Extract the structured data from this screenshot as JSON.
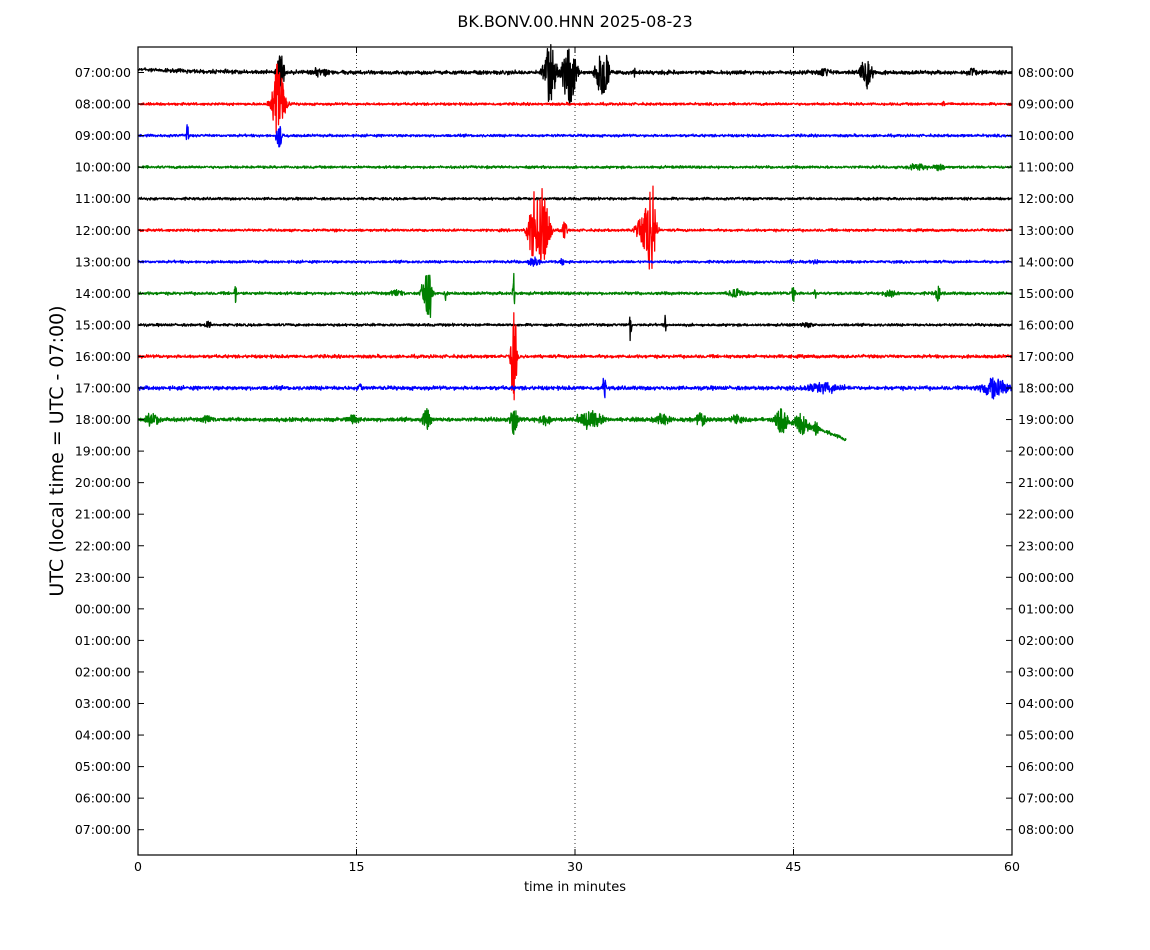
{
  "chart_data": {
    "type": "line",
    "title": "BK.BONV.00.HNN 2025-08-23",
    "xlabel": "time in minutes",
    "ylabel": "UTC (local time = UTC - 07:00)",
    "xlim": [
      0,
      60
    ],
    "x_ticks": [
      0,
      15,
      30,
      45,
      60
    ],
    "grid": "vertical dotted at 15, 30, 45",
    "left_tick_labels": [
      "07:00:00",
      "08:00:00",
      "09:00:00",
      "10:00:00",
      "11:00:00",
      "12:00:00",
      "13:00:00",
      "14:00:00",
      "15:00:00",
      "16:00:00",
      "17:00:00",
      "18:00:00",
      "19:00:00",
      "20:00:00",
      "21:00:00",
      "22:00:00",
      "23:00:00",
      "00:00:00",
      "01:00:00",
      "02:00:00",
      "03:00:00",
      "04:00:00",
      "05:00:00",
      "06:00:00",
      "07:00:00"
    ],
    "right_tick_labels": [
      "08:00:00",
      "09:00:00",
      "10:00:00",
      "11:00:00",
      "12:00:00",
      "13:00:00",
      "14:00:00",
      "15:00:00",
      "16:00:00",
      "17:00:00",
      "18:00:00",
      "19:00:00",
      "20:00:00",
      "21:00:00",
      "22:00:00",
      "23:00:00",
      "00:00:00",
      "01:00:00",
      "02:00:00",
      "03:00:00",
      "04:00:00",
      "05:00:00",
      "06:00:00",
      "07:00:00",
      "08:00:00"
    ],
    "series": [
      {
        "row": 0,
        "color": "#000000",
        "start": 0,
        "end": 60,
        "noise": 0.12,
        "offset_start": -0.15,
        "events": [
          {
            "t": 9.8,
            "amp": 1.2,
            "dur": 0.3
          },
          {
            "t": 12.3,
            "amp": 0.25,
            "dur": 0.35
          },
          {
            "t": 12.9,
            "amp": 0.25,
            "dur": 0.3
          },
          {
            "t": 28.3,
            "amp": 1.3,
            "dur": 0.6
          },
          {
            "t": 29.6,
            "amp": 1.6,
            "dur": 0.6
          },
          {
            "t": 31.9,
            "amp": 1.2,
            "dur": 0.6
          },
          {
            "t": 34.1,
            "amp": 0.2,
            "dur": 0.15
          },
          {
            "t": 47.2,
            "amp": 0.15,
            "dur": 0.8
          },
          {
            "t": 50.0,
            "amp": 0.7,
            "dur": 0.6
          },
          {
            "t": 57.3,
            "amp": 0.2,
            "dur": 0.4
          }
        ]
      },
      {
        "row": 1,
        "color": "#ff0000",
        "start": 0,
        "end": 60,
        "noise": 0.08,
        "events": [
          {
            "t": 9.6,
            "amp": 1.8,
            "dur": 0.6
          },
          {
            "t": 55.3,
            "amp": 0.15,
            "dur": 0.1
          }
        ]
      },
      {
        "row": 2,
        "color": "#0000ff",
        "start": 0,
        "end": 60,
        "noise": 0.08,
        "events": [
          {
            "t": 3.4,
            "amp": 0.7,
            "dur": 0.1
          },
          {
            "t": 9.7,
            "amp": 0.5,
            "dur": 0.3
          }
        ]
      },
      {
        "row": 3,
        "color": "#008000",
        "start": 0,
        "end": 60,
        "noise": 0.08,
        "events": [
          {
            "t": 53.5,
            "amp": 0.15,
            "dur": 1.0
          },
          {
            "t": 55.0,
            "amp": 0.15,
            "dur": 0.5
          }
        ]
      },
      {
        "row": 4,
        "color": "#000000",
        "start": 0,
        "end": 60,
        "noise": 0.08,
        "events": []
      },
      {
        "row": 5,
        "color": "#ff0000",
        "start": 0,
        "end": 60,
        "noise": 0.08,
        "events": [
          {
            "t": 27.1,
            "amp": 1.2,
            "dur": 0.5
          },
          {
            "t": 27.7,
            "amp": 1.9,
            "dur": 0.7
          },
          {
            "t": 29.3,
            "amp": 0.5,
            "dur": 0.2
          },
          {
            "t": 34.8,
            "amp": 1.0,
            "dur": 0.7
          },
          {
            "t": 35.3,
            "amp": 1.9,
            "dur": 0.4
          }
        ]
      },
      {
        "row": 6,
        "color": "#0000ff",
        "start": 0,
        "end": 60,
        "noise": 0.08,
        "events": [
          {
            "t": 23.4,
            "amp": 0.1,
            "dur": 0.1
          },
          {
            "t": 27.2,
            "amp": 0.2,
            "dur": 0.6
          },
          {
            "t": 29.1,
            "amp": 0.15,
            "dur": 0.2
          },
          {
            "t": 44.8,
            "amp": 0.1,
            "dur": 0.2
          },
          {
            "t": 46.5,
            "amp": 0.1,
            "dur": 0.4
          }
        ]
      },
      {
        "row": 7,
        "color": "#008000",
        "start": 0,
        "end": 60,
        "noise": 0.09,
        "events": [
          {
            "t": 6.7,
            "amp": 0.5,
            "dur": 0.1
          },
          {
            "t": 17.8,
            "amp": 0.2,
            "dur": 0.6
          },
          {
            "t": 19.8,
            "amp": 0.8,
            "dur": 0.5
          },
          {
            "t": 20.0,
            "amp": 1.0,
            "dur": 0.2
          },
          {
            "t": 21.1,
            "amp": 0.3,
            "dur": 0.1
          },
          {
            "t": 25.8,
            "amp": 1.0,
            "dur": 0.1
          },
          {
            "t": 41.0,
            "amp": 0.2,
            "dur": 0.8
          },
          {
            "t": 45.0,
            "amp": 0.35,
            "dur": 0.2
          },
          {
            "t": 46.5,
            "amp": 0.25,
            "dur": 0.1
          },
          {
            "t": 51.5,
            "amp": 0.2,
            "dur": 0.6
          },
          {
            "t": 54.9,
            "amp": 0.4,
            "dur": 0.2
          }
        ]
      },
      {
        "row": 8,
        "color": "#000000",
        "start": 0,
        "end": 60,
        "noise": 0.08,
        "events": [
          {
            "t": 4.8,
            "amp": 0.2,
            "dur": 0.3
          },
          {
            "t": 33.8,
            "amp": 0.9,
            "dur": 0.1
          },
          {
            "t": 36.2,
            "amp": 0.5,
            "dur": 0.1
          },
          {
            "t": 46.0,
            "amp": 0.1,
            "dur": 0.8
          }
        ]
      },
      {
        "row": 9,
        "color": "#ff0000",
        "start": 0,
        "end": 60,
        "noise": 0.1,
        "events": [
          {
            "t": 25.8,
            "amp": 2.8,
            "dur": 0.25
          }
        ]
      },
      {
        "row": 10,
        "color": "#0000ff",
        "start": 0,
        "end": 60,
        "noise": 0.12,
        "events": [
          {
            "t": 15.2,
            "amp": 0.2,
            "dur": 0.3
          },
          {
            "t": 32.0,
            "amp": 0.6,
            "dur": 0.15
          },
          {
            "t": 47.0,
            "amp": 0.2,
            "dur": 2.0
          },
          {
            "t": 58.8,
            "amp": 0.5,
            "dur": 1.2
          }
        ]
      },
      {
        "row": 11,
        "color": "#008000",
        "start": 0,
        "end": 48.6,
        "noise": 0.12,
        "drift_from": 42.5,
        "drift_end": 0.9,
        "events": [
          {
            "t": 1.0,
            "amp": 0.3,
            "dur": 0.6
          },
          {
            "t": 4.8,
            "amp": 0.2,
            "dur": 0.5
          },
          {
            "t": 14.8,
            "amp": 0.2,
            "dur": 0.5
          },
          {
            "t": 19.8,
            "amp": 0.45,
            "dur": 0.4
          },
          {
            "t": 25.8,
            "amp": 0.9,
            "dur": 0.3
          },
          {
            "t": 28.0,
            "amp": 0.25,
            "dur": 0.6
          },
          {
            "t": 31.0,
            "amp": 0.4,
            "dur": 1.2
          },
          {
            "t": 36.0,
            "amp": 0.25,
            "dur": 0.8
          },
          {
            "t": 38.6,
            "amp": 0.35,
            "dur": 0.5
          },
          {
            "t": 41.0,
            "amp": 0.2,
            "dur": 0.6
          },
          {
            "t": 44.2,
            "amp": 0.6,
            "dur": 0.6
          },
          {
            "t": 45.5,
            "amp": 0.5,
            "dur": 0.7
          },
          {
            "t": 46.5,
            "amp": 0.3,
            "dur": 0.4
          }
        ]
      }
    ]
  }
}
